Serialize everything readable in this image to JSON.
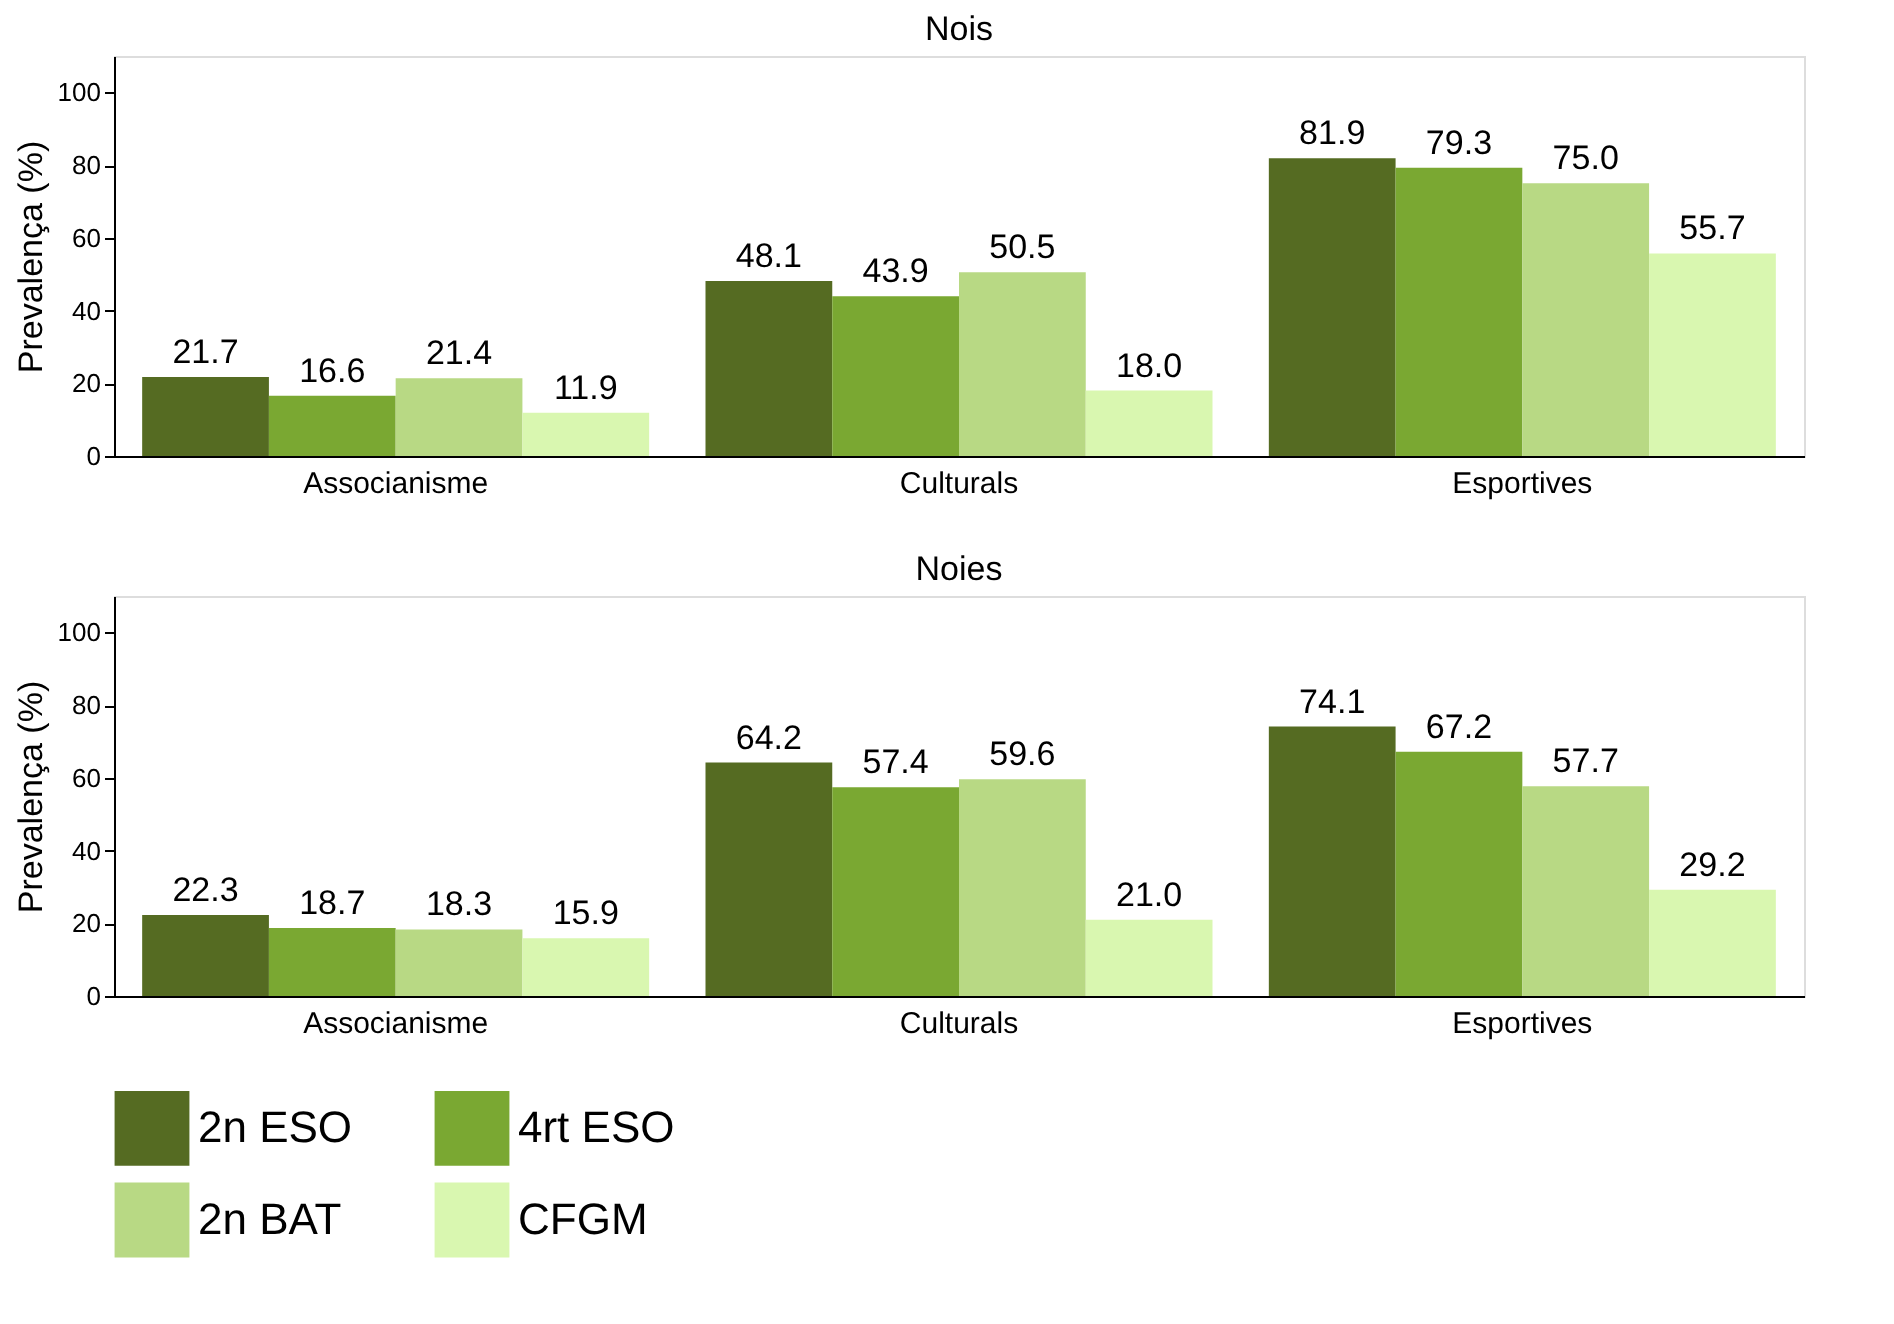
{
  "chart_data": [
    {
      "type": "bar",
      "title": "Nois",
      "ylabel": "Prevalença (%)",
      "categories": [
        "Associanisme",
        "Culturals",
        "Esportives"
      ],
      "series": [
        {
          "name": "2n ESO",
          "color": "#556b22",
          "values": [
            21.7,
            48.1,
            81.9
          ],
          "value_labels": [
            "21.7",
            "48.1",
            "81.9"
          ]
        },
        {
          "name": "4rt ESO",
          "color": "#7aa832",
          "values": [
            16.6,
            43.9,
            79.3
          ],
          "value_labels": [
            "16.6",
            "43.9",
            "79.3"
          ]
        },
        {
          "name": "2n BAT",
          "color": "#b8d984",
          "values": [
            21.4,
            50.5,
            75.0
          ],
          "value_labels": [
            "21.4",
            "50.5",
            "75.0"
          ]
        },
        {
          "name": "CFGM",
          "color": "#d9f7b0",
          "values": [
            11.9,
            18.0,
            55.7
          ],
          "value_labels": [
            "11.9",
            "18.0",
            "55.7"
          ]
        }
      ],
      "ylim": [
        0,
        110
      ],
      "yticks": [
        0,
        20,
        40,
        60,
        80,
        100
      ],
      "grid": false,
      "legend": "bottom"
    },
    {
      "type": "bar",
      "title": "Noies",
      "ylabel": "Prevalença (%)",
      "categories": [
        "Associanisme",
        "Culturals",
        "Esportives"
      ],
      "series": [
        {
          "name": "2n ESO",
          "color": "#556b22",
          "values": [
            22.3,
            64.2,
            74.1
          ],
          "value_labels": [
            "22.3",
            "64.2",
            "74.1"
          ]
        },
        {
          "name": "4rt ESO",
          "color": "#7aa832",
          "values": [
            18.7,
            57.4,
            67.2
          ],
          "value_labels": [
            "18.7",
            "57.4",
            "67.2"
          ]
        },
        {
          "name": "2n BAT",
          "color": "#b8d984",
          "values": [
            18.3,
            59.6,
            57.7
          ],
          "value_labels": [
            "18.3",
            "59.6",
            "57.7"
          ]
        },
        {
          "name": "CFGM",
          "color": "#d9f7b0",
          "values": [
            15.9,
            21.0,
            29.2
          ],
          "value_labels": [
            "15.9",
            "21.0",
            "29.2"
          ]
        }
      ],
      "ylim": [
        0,
        110
      ],
      "yticks": [
        0,
        20,
        40,
        60,
        80,
        100
      ],
      "grid": false,
      "legend": "bottom"
    }
  ]
}
